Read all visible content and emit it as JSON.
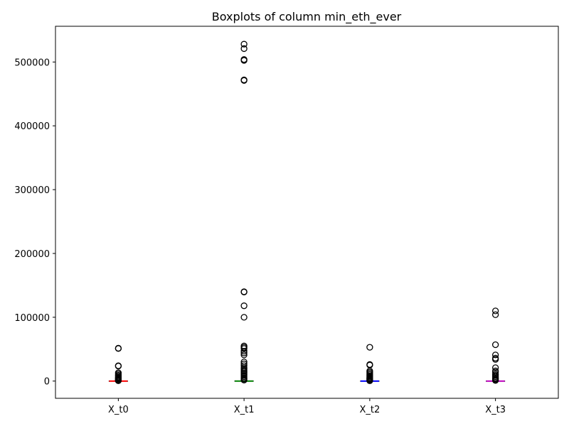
{
  "chart_data": {
    "type": "boxplot",
    "title": "Boxplots of column min_eth_ever",
    "xlabel": "",
    "ylabel": "",
    "categories": [
      "X_t0",
      "X_t1",
      "X_t2",
      "X_t3"
    ],
    "ylim": [
      -27000,
      556000
    ],
    "yticks": [
      0,
      100000,
      200000,
      300000,
      400000,
      500000
    ],
    "ytick_labels": [
      "0",
      "100000",
      "200000",
      "300000",
      "400000",
      "500000"
    ],
    "grid": false,
    "series": [
      {
        "category": "X_t0",
        "median_color": "#ff0000",
        "q1": 0,
        "median": 0,
        "q3": 200,
        "outliers": [
          51000,
          51500,
          24000,
          23500,
          13000,
          11000,
          9000,
          7500,
          6000,
          5000,
          4000,
          3000,
          2000,
          1500,
          1000,
          600
        ]
      },
      {
        "category": "X_t1",
        "median_color": "#008000",
        "q1": 0,
        "median": 0,
        "q3": 300,
        "outliers": [
          528000,
          521000,
          504000,
          502500,
          472000,
          471000,
          140000,
          139500,
          118000,
          100000,
          55000,
          53000,
          51000,
          47000,
          44000,
          41000,
          30000,
          27000,
          24000,
          21000,
          19000,
          17000,
          15000,
          13000,
          11000,
          9000,
          7000,
          5000,
          3000,
          1500
        ]
      },
      {
        "category": "X_t2",
        "median_color": "#0000ff",
        "q1": 0,
        "median": 0,
        "q3": 200,
        "outliers": [
          53000,
          26000,
          25000,
          16000,
          14000,
          12000,
          10000,
          8000,
          6500,
          5000,
          4000,
          3000,
          2000,
          1000,
          500
        ]
      },
      {
        "category": "X_t3",
        "median_color": "#bf00bf",
        "q1": 0,
        "median": 0,
        "q3": 200,
        "outliers": [
          110000,
          104000,
          57000,
          41000,
          36000,
          34000,
          21000,
          16000,
          14000,
          11000,
          9000,
          7000,
          5000,
          3500,
          2000,
          1000
        ]
      }
    ]
  }
}
